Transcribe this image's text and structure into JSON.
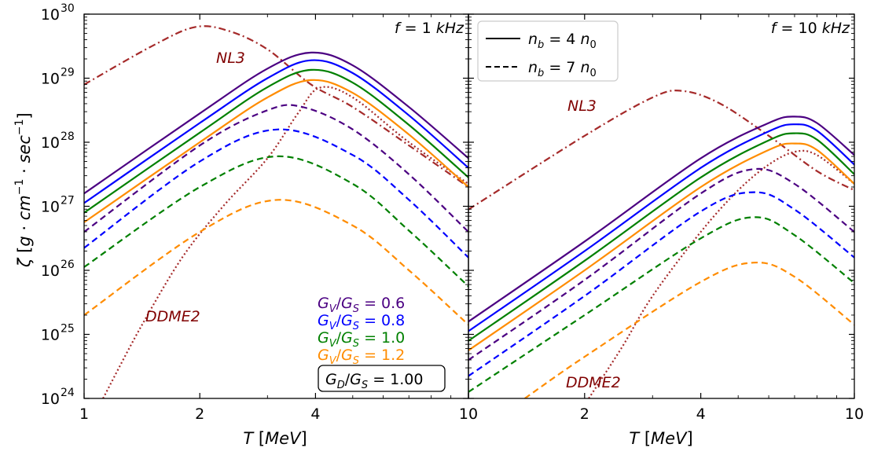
{
  "chart_data": {
    "type": "line",
    "ylabel": "ζ [g·cm⁻¹·sec⁻¹]",
    "ylabel_parts": {
      "zeta": "ζ",
      "open": "[",
      "g": "g",
      "dot": "·",
      "cm": "cm",
      "exp1": "−1",
      "dot2": "·",
      "sec": "sec",
      "exp2": "−1",
      "close": "]"
    },
    "xlabel_parts": {
      "t": "T",
      "unit": "[MeV]"
    },
    "xlabel": "T [MeV]",
    "x_scale": "log",
    "y_scale": "log",
    "ylim_exponent": [
      24,
      30
    ],
    "y_tick_labels": [
      {
        "base": "10",
        "exp": "24"
      },
      {
        "base": "10",
        "exp": "25"
      },
      {
        "base": "10",
        "exp": "26"
      },
      {
        "base": "10",
        "exp": "27"
      },
      {
        "base": "10",
        "exp": "28"
      },
      {
        "base": "10",
        "exp": "29"
      },
      {
        "base": "10",
        "exp": "30"
      }
    ],
    "legend": {
      "placement": "top-left of right panel",
      "entries": [
        {
          "style": "solid",
          "label": "n_b = 4 n_0",
          "parts": {
            "n": "n",
            "sub": "b",
            "eq": "= 4",
            "n2": "n",
            "sub2": "0"
          }
        },
        {
          "style": "dashed",
          "label": "n_b = 7 n_0",
          "parts": {
            "n": "n",
            "sub": "b",
            "eq": "= 7",
            "n2": "n",
            "sub2": "0"
          }
        }
      ]
    },
    "gv_labels": [
      {
        "label": "G_V/G_S = 0.6",
        "value": "0.6",
        "color": "#4b0082"
      },
      {
        "label": "G_V/G_S = 0.8",
        "value": "0.8",
        "color": "#0000ff"
      },
      {
        "label": "G_V/G_S = 1.0",
        "value": "1.0",
        "color": "#008000"
      },
      {
        "label": "G_V/G_S = 1.2",
        "value": "1.2",
        "color": "#ff8c00"
      }
    ],
    "gd_box": {
      "label": "G_D/G_S = 1.00",
      "value": "1.00"
    },
    "panels": [
      {
        "title": "f = 1 kHz",
        "title_parts": {
          "f": "f",
          "eq": "= 1",
          "unit": "kHz"
        },
        "xlim": [
          1,
          10
        ],
        "x_tick_labels": [
          "1",
          "2",
          "4",
          "10"
        ],
        "x_tick_values": [
          1,
          2,
          4,
          10
        ],
        "annotations": [
          {
            "text": "NL3",
            "color": "#800000"
          },
          {
            "text": "DDME2",
            "color": "#800000"
          }
        ],
        "series": [
          {
            "name": "NL3",
            "style": "dashdot",
            "color": "#a52a2a",
            "x": [
              1,
              1.5,
              1.95,
              2.4,
              3,
              3.9,
              5,
              7,
              10
            ],
            "log10y": [
              28.9,
              29.5,
              29.8,
              29.73,
              29.45,
              28.9,
              28.55,
              27.95,
              27.3
            ]
          },
          {
            "name": "DDME2",
            "style": "dotted",
            "color": "#a52a2a",
            "x": [
              1.12,
              1.4,
              1.8,
              2.3,
              3,
              3.6,
              4.1,
              5,
              7,
              10
            ],
            "log10y": [
              24,
              25.1,
              26.2,
              27.0,
              27.75,
              28.45,
              28.85,
              28.7,
              28.0,
              27.35
            ]
          },
          {
            "name": "G_V/G_S = 0.6, n_b = 4 n_0",
            "style": "solid",
            "color": "#4b0082",
            "x": [
              1,
              2,
              3,
              3.9,
              5,
              7,
              10
            ],
            "log10y": [
              27.2,
              28.45,
              29.15,
              29.4,
              29.2,
              28.55,
              27.75
            ]
          },
          {
            "name": "G_V/G_S = 0.8, n_b = 4 n_0",
            "style": "solid",
            "color": "#0000ff",
            "x": [
              1,
              2,
              3,
              3.9,
              5,
              7,
              10
            ],
            "log10y": [
              27.05,
              28.3,
              29.0,
              29.28,
              29.08,
              28.42,
              27.6
            ]
          },
          {
            "name": "G_V/G_S = 1.0, n_b = 4 n_0",
            "style": "solid",
            "color": "#008000",
            "x": [
              1,
              2,
              3,
              3.9,
              5,
              7,
              10
            ],
            "log10y": [
              26.9,
              28.15,
              28.86,
              29.13,
              28.93,
              28.27,
              27.45
            ]
          },
          {
            "name": "G_V/G_S = 1.2, n_b = 4 n_0",
            "style": "solid",
            "color": "#ff8c00",
            "x": [
              1,
              2,
              3,
              3.9,
              5,
              7,
              10
            ],
            "log10y": [
              26.75,
              28.0,
              28.7,
              28.97,
              28.77,
              28.12,
              27.3
            ]
          },
          {
            "name": "G_V/G_S = 0.6, n_b = 7 n_0",
            "style": "dashed",
            "color": "#4b0082",
            "x": [
              1,
              2,
              3,
              3.7,
              5,
              7,
              10
            ],
            "log10y": [
              26.6,
              27.95,
              28.5,
              28.55,
              28.2,
              27.5,
              26.6
            ]
          },
          {
            "name": "G_V/G_S = 0.8, n_b = 7 n_0",
            "style": "dashed",
            "color": "#0000ff",
            "x": [
              1,
              2,
              3.2,
              5,
              7,
              10
            ],
            "log10y": [
              26.35,
              27.7,
              28.2,
              27.8,
              27.1,
              26.2
            ]
          },
          {
            "name": "G_V/G_S = 1.0, n_b = 7 n_0",
            "style": "dashed",
            "color": "#008000",
            "x": [
              1,
              2,
              3.2,
              5,
              7,
              10
            ],
            "log10y": [
              26.05,
              27.3,
              27.78,
              27.35,
              26.62,
              25.75
            ]
          },
          {
            "name": "G_V/G_S = 1.2, n_b = 7 n_0",
            "style": "dashed",
            "color": "#ff8c00",
            "x": [
              1,
              2,
              3.2,
              5,
              7,
              10
            ],
            "log10y": [
              25.3,
              26.6,
              27.1,
              26.7,
              26.0,
              25.15
            ]
          }
        ]
      },
      {
        "title": "f = 10 kHz",
        "title_parts": {
          "f": "f",
          "eq": "= 10",
          "unit": "kHz"
        },
        "xlim": [
          1,
          10
        ],
        "x_tick_labels": [
          "2",
          "4",
          "10"
        ],
        "x_tick_values": [
          2,
          4,
          10
        ],
        "annotations": [
          {
            "text": "NL3",
            "color": "#800000"
          },
          {
            "text": "DDME2",
            "color": "#800000"
          }
        ],
        "series": [
          {
            "name": "NL3",
            "style": "dashdot",
            "color": "#a52a2a",
            "x": [
              1,
              2,
              3,
              3.6,
              4.5,
              6,
              8,
              10
            ],
            "log10y": [
              26.95,
              28.1,
              28.7,
              28.8,
              28.6,
              28.1,
              27.55,
              27.25
            ]
          },
          {
            "name": "DDME2",
            "style": "dotted",
            "color": "#a52a2a",
            "x": [
              2.05,
              2.5,
              3,
              4,
              5,
              6,
              7,
              8,
              10
            ],
            "log10y": [
              24,
              24.8,
              25.6,
              26.6,
              27.25,
              27.65,
              27.85,
              27.8,
              27.35
            ]
          },
          {
            "name": "G_V/G_S = 0.6, n_b = 4 n_0",
            "style": "solid",
            "color": "#4b0082",
            "x": [
              1,
              2,
              4,
              6,
              7,
              8,
              10
            ],
            "log10y": [
              25.2,
              26.45,
              27.75,
              28.3,
              28.4,
              28.3,
              27.8
            ]
          },
          {
            "name": "G_V/G_S = 0.8, n_b = 4 n_0",
            "style": "solid",
            "color": "#0000ff",
            "x": [
              1,
              2,
              4,
              6,
              7,
              8,
              10
            ],
            "log10y": [
              25.05,
              26.3,
              27.6,
              28.17,
              28.28,
              28.18,
              27.65
            ]
          },
          {
            "name": "G_V/G_S = 1.0, n_b = 4 n_0",
            "style": "solid",
            "color": "#008000",
            "x": [
              1,
              2,
              4,
              6,
              7,
              8,
              10
            ],
            "log10y": [
              24.9,
              26.15,
              27.45,
              28.03,
              28.14,
              28.04,
              27.5
            ]
          },
          {
            "name": "G_V/G_S = 1.2, n_b = 4 n_0",
            "style": "solid",
            "color": "#ff8c00",
            "x": [
              1,
              2,
              4,
              6,
              7,
              8,
              10
            ],
            "log10y": [
              24.75,
              26.0,
              27.3,
              27.88,
              27.98,
              27.88,
              27.35
            ]
          },
          {
            "name": "G_V/G_S = 0.6, n_b = 7 n_0",
            "style": "dashed",
            "color": "#4b0082",
            "x": [
              1,
              2,
              4,
              5.5,
              7,
              10
            ],
            "log10y": [
              24.6,
              25.85,
              27.2,
              27.58,
              27.35,
              26.6
            ]
          },
          {
            "name": "G_V/G_S = 0.8, n_b = 7 n_0",
            "style": "dashed",
            "color": "#0000ff",
            "x": [
              1,
              2,
              4,
              5.5,
              7,
              10
            ],
            "log10y": [
              24.35,
              25.6,
              26.92,
              27.22,
              26.95,
              26.2
            ]
          },
          {
            "name": "G_V/G_S = 1.0, n_b = 7 n_0",
            "style": "dashed",
            "color": "#008000",
            "x": [
              1,
              2,
              4,
              5.5,
              7,
              10
            ],
            "log10y": [
              24.1,
              25.3,
              26.5,
              26.83,
              26.55,
              25.8
            ]
          },
          {
            "name": "G_V/G_S = 1.2, n_b = 7 n_0",
            "style": "dashed",
            "color": "#ff8c00",
            "x": [
              1.4,
              2,
              4,
              5.5,
              7,
              10
            ],
            "log10y": [
              24,
              24.65,
              25.82,
              26.12,
              25.9,
              25.15
            ]
          }
        ]
      }
    ]
  }
}
